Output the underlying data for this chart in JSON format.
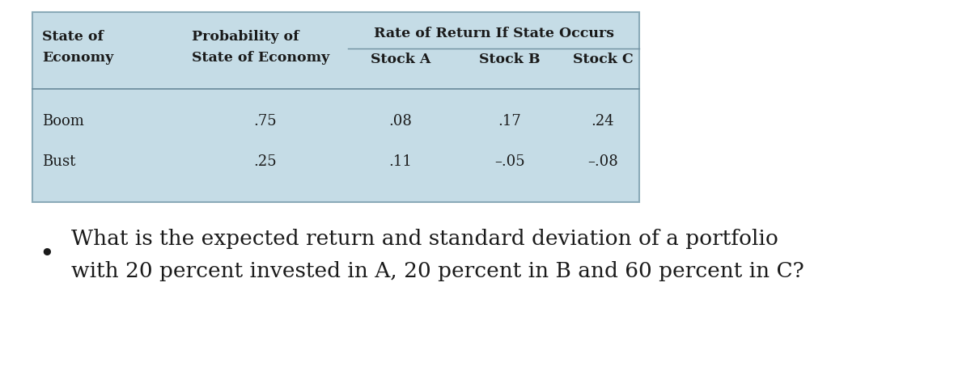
{
  "table": {
    "col1_header": [
      "State of",
      "Economy"
    ],
    "col2_header": [
      "Probability of",
      "State of Economy"
    ],
    "span_title": "Rate of Return If State Occurs",
    "stock_headers": [
      "Stock A",
      "Stock B",
      "Stock C"
    ],
    "rows": [
      [
        "Boom",
        ".75",
        ".08",
        ".17",
        ".24"
      ],
      [
        "Bust",
        ".25",
        ".11",
        "–.05",
        "–.08"
      ]
    ],
    "bg_color": "#c5dce6",
    "border_color": "#8aaab8",
    "line_color": "#7090a0"
  },
  "bullet_line1": "What is the expected return and standard deviation of a portfolio",
  "bullet_line2": "with 20 percent invested in A, 20 percent in B and 60 percent in C?",
  "bg_color": "#ffffff",
  "text_color": "#1a1a1a",
  "fs_header": 12.5,
  "fs_data": 13,
  "fs_bullet": 19
}
